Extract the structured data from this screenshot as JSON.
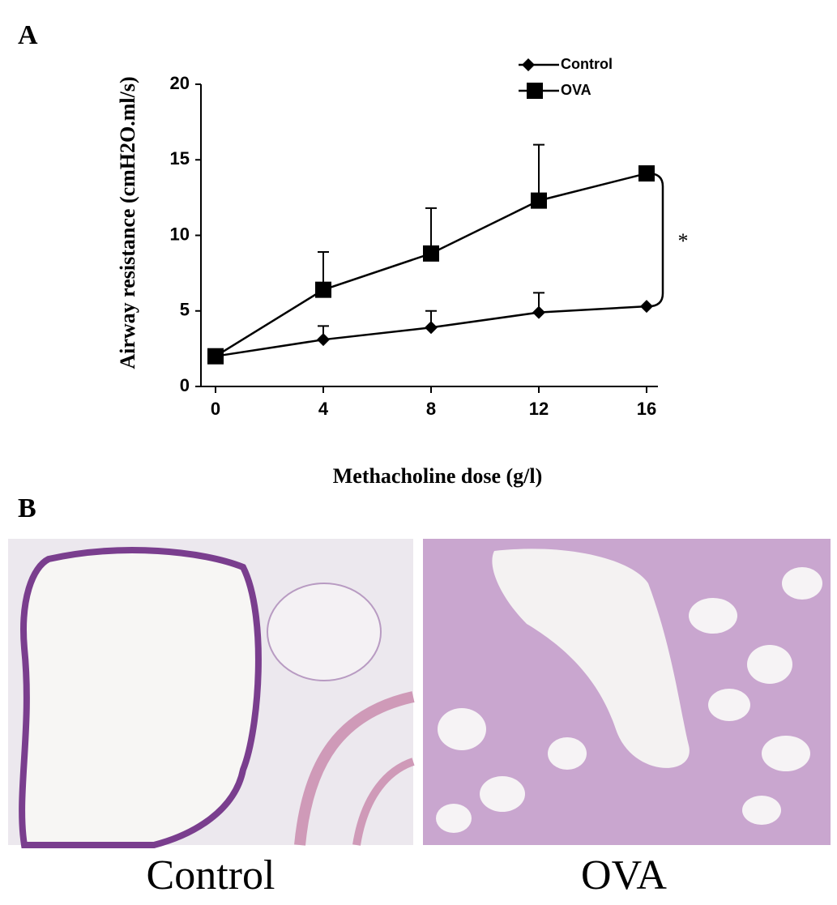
{
  "panel_labels": [
    "A",
    "B"
  ],
  "chart_data": {
    "type": "line",
    "x_label": "Methacholine dose  (g/l)",
    "y_label": "Airway resistance  (cmH2O.ml/s)",
    "annotation": "*",
    "x": [
      0,
      4,
      8,
      12,
      16
    ],
    "series": [
      {
        "name": "Control",
        "color": "#000000",
        "marker": "diamond",
        "values": [
          2.0,
          3.1,
          3.9,
          4.9,
          5.3
        ],
        "errors": [
          null,
          0.9,
          1.1,
          1.3,
          null
        ]
      },
      {
        "name": "OVA",
        "color": "#000000",
        "marker": "square",
        "values": [
          2.0,
          6.4,
          8.8,
          12.3,
          14.1
        ],
        "errors": [
          null,
          2.5,
          3.0,
          3.7,
          null
        ]
      }
    ],
    "xlim": [
      0,
      16
    ],
    "xticks": [
      0,
      4,
      8,
      12,
      16
    ],
    "ylim": [
      0,
      20
    ],
    "yticks": [
      0,
      5,
      10,
      15,
      20
    ],
    "legend": "top-right"
  },
  "images": [
    {
      "caption": "Control"
    },
    {
      "caption": "OVA"
    }
  ]
}
